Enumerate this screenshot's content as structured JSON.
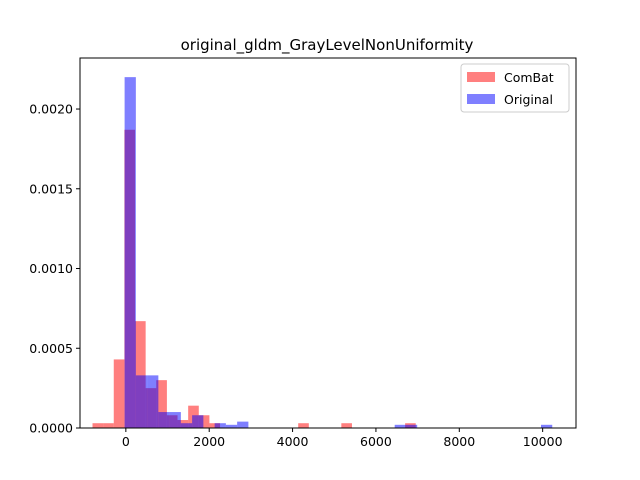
{
  "chart_data": {
    "type": "histogram",
    "title": "original_gldm_GrayLevelNonUniformity",
    "xlabel": "",
    "ylabel": "",
    "xlim": [
      -1100,
      10800
    ],
    "ylim": [
      0,
      0.00232
    ],
    "x_ticks": [
      0,
      2000,
      4000,
      6000,
      8000,
      10000
    ],
    "x_tick_labels": [
      "0",
      "2000",
      "4000",
      "6000",
      "8000",
      "10000"
    ],
    "y_ticks": [
      0,
      0.0005,
      0.001,
      0.0015,
      0.002
    ],
    "y_tick_labels": [
      "0.0000",
      "0.0005",
      "0.0010",
      "0.0015",
      "0.0020"
    ],
    "legend_position": "top-right",
    "series": [
      {
        "name": "ComBat",
        "color": "#ff0000",
        "opacity": 0.5,
        "bin_width": 255,
        "bars": [
          {
            "x0": -800,
            "height": 3e-05
          },
          {
            "x0": -545,
            "height": 3e-05
          },
          {
            "x0": -290,
            "height": 0.00043
          },
          {
            "x0": -35,
            "height": 0.00187
          },
          {
            "x0": 220,
            "height": 0.00067
          },
          {
            "x0": 475,
            "height": 0.00025
          },
          {
            "x0": 730,
            "height": 0.0003
          },
          {
            "x0": 985,
            "height": 8e-05
          },
          {
            "x0": 1240,
            "height": 5e-05
          },
          {
            "x0": 1495,
            "height": 0.00014
          },
          {
            "x0": 1750,
            "height": 8e-05
          },
          {
            "x0": 2005,
            "height": 3e-05
          },
          {
            "x0": 4135,
            "height": 3e-05
          },
          {
            "x0": 5170,
            "height": 3e-05
          },
          {
            "x0": 6700,
            "height": 3e-05
          }
        ]
      },
      {
        "name": "Original",
        "color": "#0000ff",
        "opacity": 0.5,
        "bin_width": 270,
        "bars": [
          {
            "x0": -30,
            "height": 0.0022
          },
          {
            "x0": 240,
            "height": 0.00033
          },
          {
            "x0": 510,
            "height": 0.00033
          },
          {
            "x0": 780,
            "height": 0.0001
          },
          {
            "x0": 1050,
            "height": 0.0001
          },
          {
            "x0": 1320,
            "height": 3e-05
          },
          {
            "x0": 1590,
            "height": 8e-05
          },
          {
            "x0": 2130,
            "height": 3e-05
          },
          {
            "x0": 2400,
            "height": 2e-05
          },
          {
            "x0": 2670,
            "height": 4e-05
          },
          {
            "x0": 6450,
            "height": 2e-05
          },
          {
            "x0": 6720,
            "height": 2e-05
          },
          {
            "x0": 9960,
            "height": 2e-05
          }
        ]
      }
    ]
  }
}
